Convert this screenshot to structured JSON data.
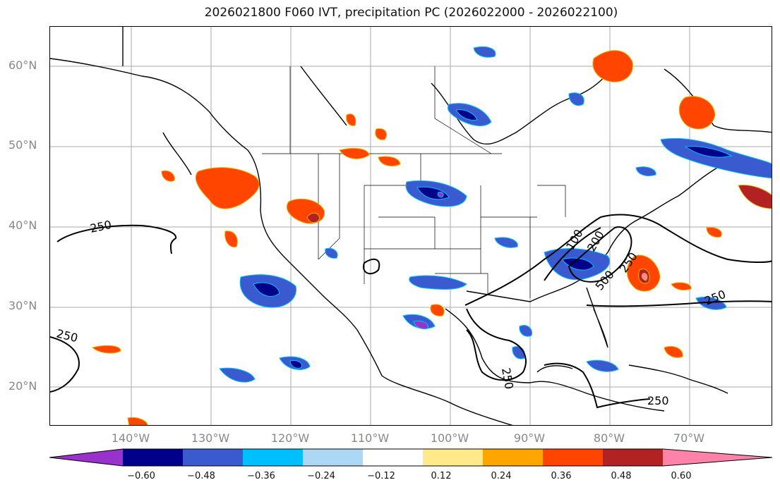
{
  "title": "2026021800 F060 IVT, precipitation PC (2026022000 - 2026022100)",
  "lat_labels": [
    "60°N",
    "50°N",
    "40°N",
    "30°N",
    "20°N"
  ],
  "lon_labels": [
    "140°W",
    "130°W",
    "120°W",
    "110°W",
    "100°W",
    "90°W",
    "80°W",
    "70°W"
  ],
  "contour_labels": [
    "250",
    "250",
    "250",
    "250",
    "250",
    "100",
    "200",
    "500",
    "250"
  ],
  "colorbar": {
    "colors": [
      "#9932cc",
      "#00008b",
      "#3a5bd0",
      "#00bfff",
      "#add8f5",
      "#ffffff",
      "#ffe98a",
      "#ffa500",
      "#ff4500",
      "#b22222",
      "#ff82ab"
    ],
    "ticks": [
      "−0.60",
      "−0.48",
      "−0.36",
      "−0.24",
      "−0.12",
      "0.12",
      "0.24",
      "0.36",
      "0.48",
      "0.60"
    ]
  }
}
